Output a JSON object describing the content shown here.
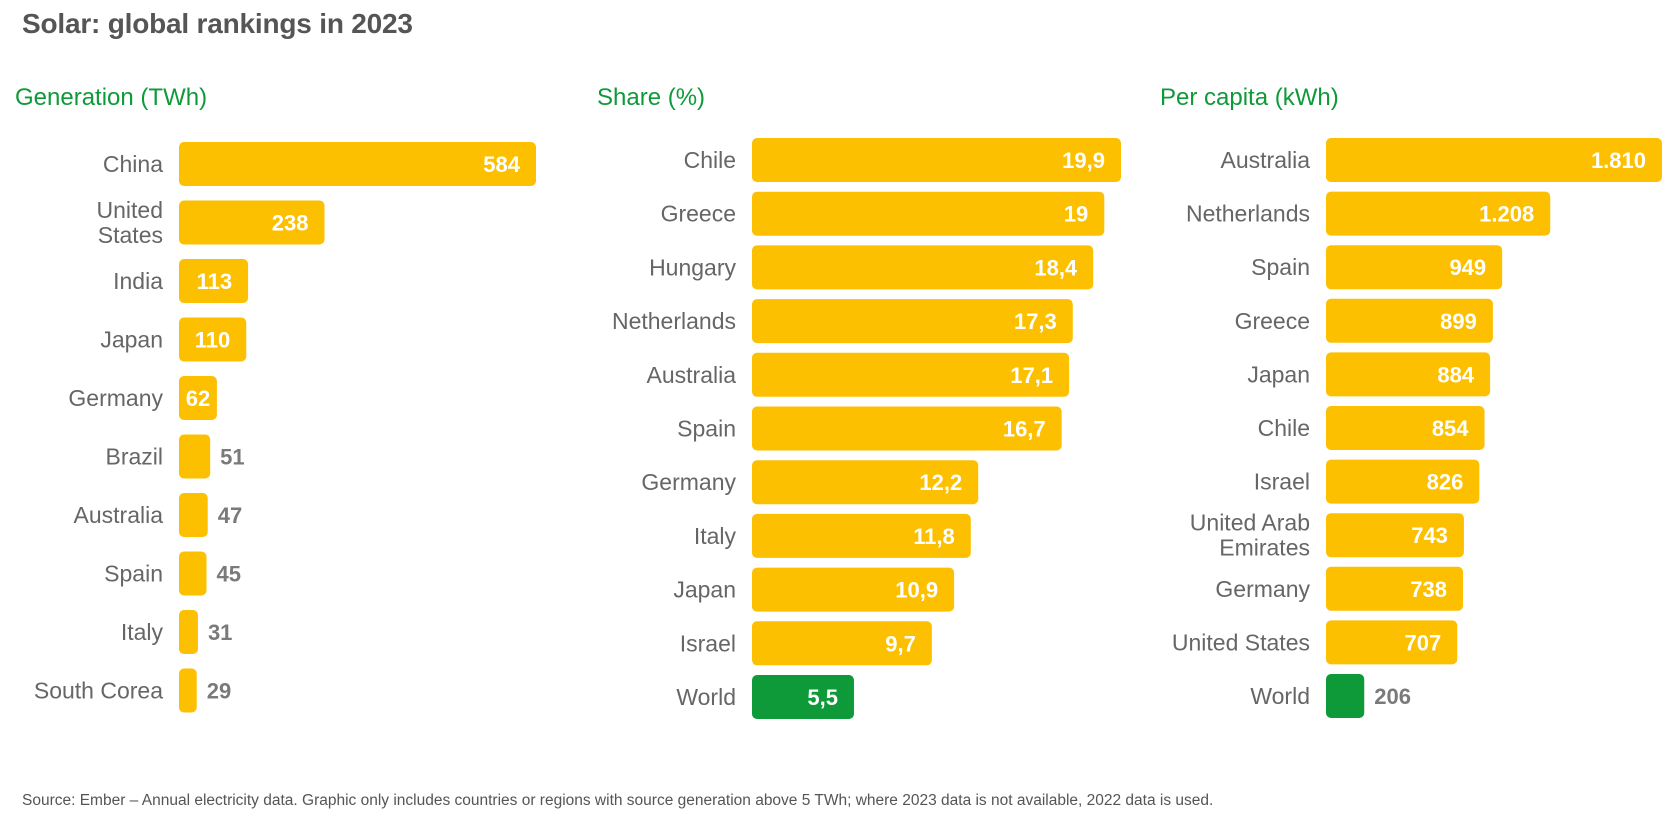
{
  "title": "Solar: global rankings in 2023",
  "source": "Source: Ember – Annual electricity data. Graphic only includes countries or regions with source generation above 5 TWh; where 2023 data is not available, 2022 data is used.",
  "colors": {
    "bar": "#fcc000",
    "highlight": "#0f9a3a",
    "subtitle": "#0f9a3a"
  },
  "chart_data": [
    {
      "type": "bar",
      "orientation": "horizontal",
      "title": "Generation (TWh)",
      "categories": [
        "China",
        "United States",
        "India",
        "Japan",
        "Germany",
        "Brazil",
        "Australia",
        "Spain",
        "Italy",
        "South Corea"
      ],
      "values": [
        584,
        238,
        113,
        110,
        62,
        51,
        47,
        45,
        31,
        29
      ],
      "value_labels": [
        "584",
        "238",
        "113",
        "110",
        "62",
        "51",
        "47",
        "45",
        "31",
        "29"
      ],
      "xlim": [
        0,
        584
      ]
    },
    {
      "type": "bar",
      "orientation": "horizontal",
      "title": "Share (%)",
      "categories": [
        "Chile",
        "Greece",
        "Hungary",
        "Netherlands",
        "Australia",
        "Spain",
        "Germany",
        "Italy",
        "Japan",
        "Israel",
        "World"
      ],
      "values": [
        19.9,
        19,
        18.4,
        17.3,
        17.1,
        16.7,
        12.2,
        11.8,
        10.9,
        9.7,
        5.5
      ],
      "value_labels": [
        "19,9",
        "19",
        "18,4",
        "17,3",
        "17,1",
        "16,7",
        "12,2",
        "11,8",
        "10,9",
        "9,7",
        "5,5"
      ],
      "highlight": [
        "World"
      ],
      "xlim": [
        0,
        19.9
      ]
    },
    {
      "type": "bar",
      "orientation": "horizontal",
      "title": "Per capita (kWh)",
      "categories": [
        "Australia",
        "Netherlands",
        "Spain",
        "Greece",
        "Japan",
        "Chile",
        "Israel",
        "United Arab Emirates",
        "Germany",
        "United States",
        "World"
      ],
      "values": [
        1810,
        1208,
        949,
        899,
        884,
        854,
        826,
        743,
        738,
        707,
        206
      ],
      "value_labels": [
        "1.810",
        "1.208",
        "949",
        "899",
        "884",
        "854",
        "826",
        "743",
        "738",
        "707",
        "206"
      ],
      "highlight": [
        "World"
      ],
      "xlim": [
        0,
        1810
      ]
    }
  ]
}
